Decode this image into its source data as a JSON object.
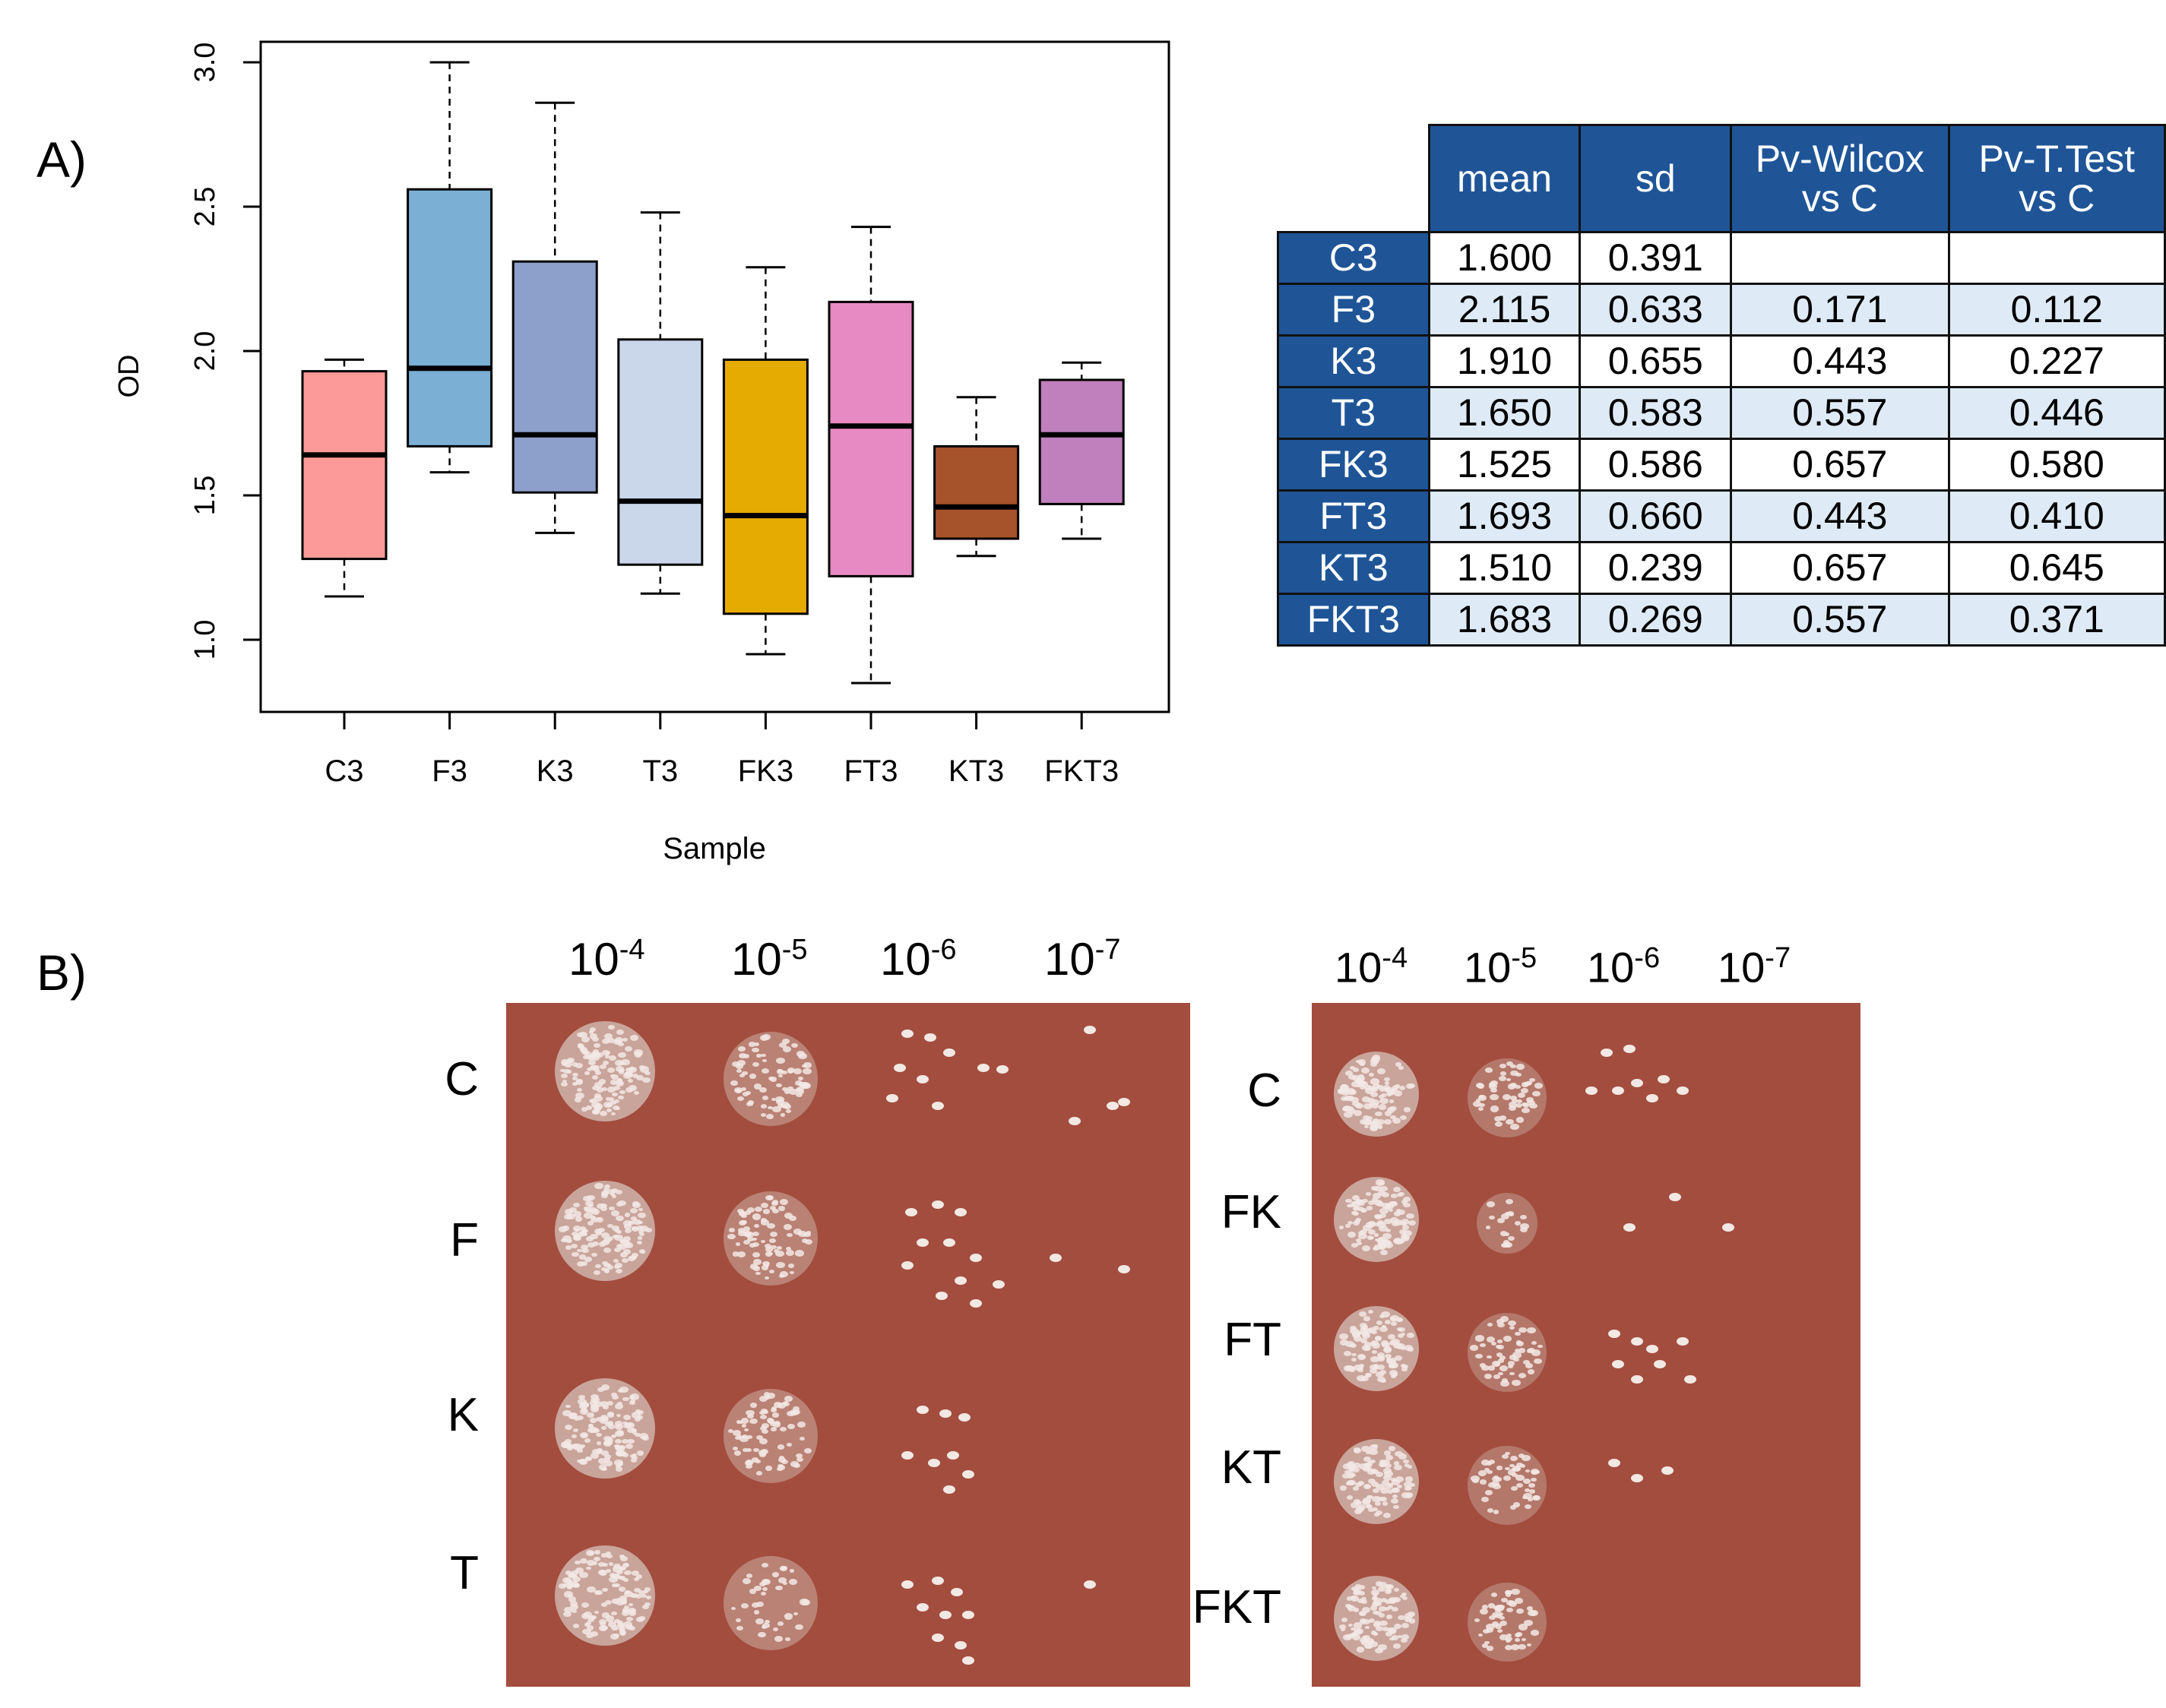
{
  "figure": {
    "panel_a_label": "A)",
    "panel_b_label": "B)"
  },
  "chart_data": {
    "type": "box",
    "xlabel": "Sample",
    "ylabel": "OD",
    "categories": [
      "C3",
      "F3",
      "K3",
      "T3",
      "FK3",
      "FT3",
      "KT3",
      "FKT3"
    ],
    "yticks": [
      "1.0",
      "1.5",
      "2.0",
      "2.5",
      "3.0"
    ],
    "ylim": [
      0.8,
      3.1
    ],
    "series": [
      {
        "category": "C3",
        "whisker_low": 1.15,
        "q1": 1.28,
        "median": 1.64,
        "q3": 1.93,
        "whisker_high": 1.97,
        "color": "#fb9a99"
      },
      {
        "category": "F3",
        "whisker_low": 1.58,
        "q1": 1.67,
        "median": 1.94,
        "q3": 2.56,
        "whisker_high": 3.0,
        "color": "#7bafd4"
      },
      {
        "category": "K3",
        "whisker_low": 1.37,
        "q1": 1.51,
        "median": 1.71,
        "q3": 2.31,
        "whisker_high": 2.86,
        "color": "#8da0cb"
      },
      {
        "category": "T3",
        "whisker_low": 1.16,
        "q1": 1.26,
        "median": 1.48,
        "q3": 2.04,
        "whisker_high": 2.48,
        "color": "#cad7ea"
      },
      {
        "category": "FK3",
        "whisker_low": 0.95,
        "q1": 1.09,
        "median": 1.43,
        "q3": 1.97,
        "whisker_high": 2.29,
        "color": "#e6ab02"
      },
      {
        "category": "FT3",
        "whisker_low": 0.85,
        "q1": 1.22,
        "median": 1.74,
        "q3": 2.17,
        "whisker_high": 2.43,
        "color": "#e78ac3"
      },
      {
        "category": "KT3",
        "whisker_low": 1.29,
        "q1": 1.35,
        "median": 1.46,
        "q3": 1.67,
        "whisker_high": 1.84,
        "color": "#a6522a"
      },
      {
        "category": "FKT3",
        "whisker_low": 1.35,
        "q1": 1.47,
        "median": 1.71,
        "q3": 1.9,
        "whisker_high": 1.96,
        "color": "#bf80bd"
      }
    ]
  },
  "table": {
    "headers": [
      "mean",
      "sd",
      "Pv-Wilcox\nvs C",
      "Pv-T.Test\nvs C"
    ],
    "rows": [
      {
        "label": "C3",
        "values": [
          "1.600",
          "0.391",
          "",
          ""
        ]
      },
      {
        "label": "F3",
        "values": [
          "2.115",
          "0.633",
          "0.171",
          "0.112"
        ]
      },
      {
        "label": "K3",
        "values": [
          "1.910",
          "0.655",
          "0.443",
          "0.227"
        ]
      },
      {
        "label": "T3",
        "values": [
          "1.650",
          "0.583",
          "0.557",
          "0.446"
        ]
      },
      {
        "label": "FK3",
        "values": [
          "1.525",
          "0.586",
          "0.657",
          "0.580"
        ]
      },
      {
        "label": "FT3",
        "values": [
          "1.693",
          "0.660",
          "0.443",
          "0.410"
        ]
      },
      {
        "label": "KT3",
        "values": [
          "1.510",
          "0.239",
          "0.657",
          "0.645"
        ]
      },
      {
        "label": "FKT3",
        "values": [
          "1.683",
          "0.269",
          "0.557",
          "0.371"
        ]
      }
    ]
  },
  "plates": {
    "dilution_base": "10",
    "dilution_exponents": [
      "-4",
      "-5",
      "-6",
      "-7"
    ],
    "plate_color": "#a34d3e",
    "left_rows": [
      "C",
      "F",
      "K",
      "T"
    ],
    "right_rows": [
      "C",
      "FK",
      "FT",
      "KT",
      "FKT"
    ]
  }
}
